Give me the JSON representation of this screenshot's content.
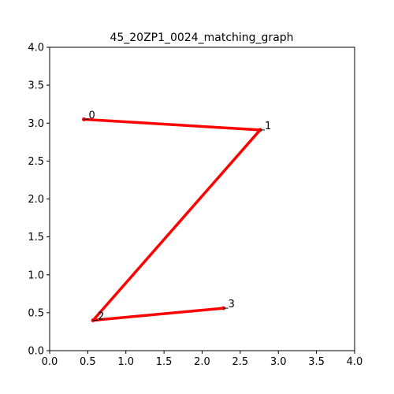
{
  "chart_data": {
    "type": "line",
    "title": "45_20ZP1_0024_matching_graph",
    "xlabel": "",
    "ylabel": "",
    "xlim": [
      0,
      4
    ],
    "ylim": [
      0,
      4
    ],
    "x_ticks": [
      "0.0",
      "0.5",
      "1.0",
      "1.5",
      "2.0",
      "2.5",
      "3.0",
      "3.5",
      "4.0"
    ],
    "y_ticks": [
      "0.0",
      "0.5",
      "1.0",
      "1.5",
      "2.0",
      "2.5",
      "3.0",
      "3.5",
      "4.0"
    ],
    "grid": false,
    "line_color": "#ff0000",
    "nodes": [
      {
        "label": "0",
        "x": 0.45,
        "y": 3.05
      },
      {
        "label": "1",
        "x": 2.76,
        "y": 2.91
      },
      {
        "label": "2",
        "x": 0.57,
        "y": 0.4
      },
      {
        "label": "3",
        "x": 2.28,
        "y": 0.56
      }
    ],
    "edges": [
      [
        0,
        1
      ],
      [
        1,
        2
      ],
      [
        2,
        3
      ]
    ]
  }
}
